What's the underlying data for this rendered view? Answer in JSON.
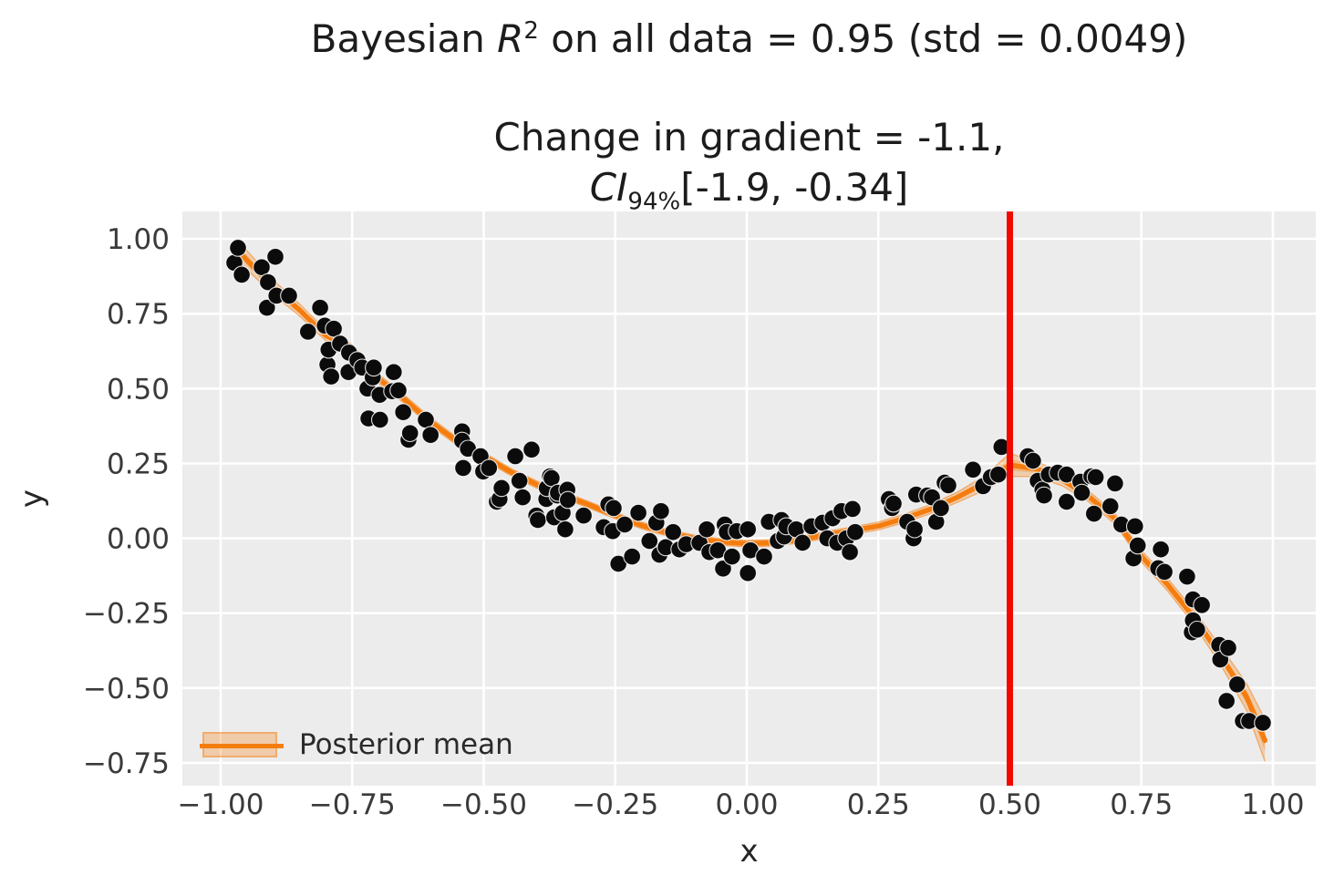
{
  "titles": {
    "suptitle": {
      "pre": "Bayesian ",
      "var": "R",
      "sup": "2",
      "post": " on all data = 0.95 (std = 0.0049)"
    },
    "axes_title": {
      "line1": "Change in gradient = -1.1,",
      "ci_var": "CI",
      "ci_sub": "94%",
      "ci_post": "[-1.9, -0.34]"
    }
  },
  "legend": {
    "label": "Posterior mean"
  },
  "colors": {
    "plot_bg": "#ececec",
    "grid": "#ffffff",
    "scatter": "#0b0b0b",
    "scatter_edge": "#ffffff",
    "mean_line": "#f57d0e",
    "band": "rgba(246,126,15,0.28)",
    "band_inner": "rgba(246,126,15,0.30)",
    "band_edge": "rgba(246,126,15,0.55)",
    "vline": "#f10800",
    "tick_text": "#3a3a3a",
    "axis_label": "#262626"
  },
  "chart_data": {
    "type": "scatter",
    "suptitle_plain": "Bayesian R2 on all data = 0.95 (std = 0.0049)",
    "title_plain": "Change in gradient = -1.1, CI94%[-1.9, -0.34]",
    "xlabel": "x",
    "ylabel": "y",
    "xlim": [
      -1.073,
      1.081
    ],
    "ylim": [
      -0.826,
      1.091
    ],
    "grid": true,
    "legend_position": "lower left",
    "vline_x": 0.5,
    "x_ticks": {
      "values": [
        -1.0,
        -0.75,
        -0.5,
        -0.25,
        0.0,
        0.25,
        0.5,
        0.75,
        1.0
      ],
      "labels": [
        "−1.00",
        "−0.75",
        "−0.50",
        "−0.25",
        "0.00",
        "0.25",
        "0.50",
        "0.75",
        "1.00"
      ]
    },
    "y_ticks": {
      "values": [
        1.0,
        0.75,
        0.5,
        0.25,
        0.0,
        -0.25,
        -0.5,
        -0.75
      ],
      "labels": [
        "1.00",
        "0.75",
        "0.50",
        "0.25",
        "0.00",
        "−0.25",
        "−0.50",
        "−0.75"
      ]
    },
    "posterior_mean": [
      [
        -0.97,
        0.965
      ],
      [
        -0.9,
        0.838
      ],
      [
        -0.85,
        0.762
      ],
      [
        -0.8,
        0.677
      ],
      [
        -0.75,
        0.631
      ],
      [
        -0.7,
        0.533
      ],
      [
        -0.65,
        0.463
      ],
      [
        -0.6,
        0.387
      ],
      [
        -0.55,
        0.323
      ],
      [
        -0.5,
        0.274
      ],
      [
        -0.45,
        0.223
      ],
      [
        -0.4,
        0.18
      ],
      [
        -0.35,
        0.145
      ],
      [
        -0.3,
        0.112
      ],
      [
        -0.25,
        0.076
      ],
      [
        -0.2,
        0.043
      ],
      [
        -0.15,
        0.018
      ],
      [
        -0.1,
        0.0
      ],
      [
        -0.05,
        -0.012
      ],
      [
        0.0,
        -0.018
      ],
      [
        0.05,
        -0.015
      ],
      [
        0.1,
        -0.005
      ],
      [
        0.15,
        0.011
      ],
      [
        0.2,
        0.026
      ],
      [
        0.25,
        0.041
      ],
      [
        0.3,
        0.067
      ],
      [
        0.35,
        0.098
      ],
      [
        0.4,
        0.137
      ],
      [
        0.45,
        0.183
      ],
      [
        0.5,
        0.245
      ],
      [
        0.55,
        0.232
      ],
      [
        0.6,
        0.195
      ],
      [
        0.65,
        0.14
      ],
      [
        0.7,
        0.065
      ],
      [
        0.75,
        -0.06
      ],
      [
        0.8,
        -0.155
      ],
      [
        0.85,
        -0.265
      ],
      [
        0.9,
        -0.39
      ],
      [
        0.95,
        -0.53
      ],
      [
        0.985,
        -0.675
      ]
    ],
    "ci_halfwidth": [
      0.035,
      0.024,
      0.02,
      0.018,
      0.016,
      0.015,
      0.014,
      0.014,
      0.013,
      0.013,
      0.012,
      0.012,
      0.011,
      0.011,
      0.011,
      0.011,
      0.011,
      0.011,
      0.011,
      0.011,
      0.011,
      0.011,
      0.011,
      0.012,
      0.013,
      0.014,
      0.015,
      0.017,
      0.024,
      0.038,
      0.026,
      0.02,
      0.018,
      0.018,
      0.019,
      0.021,
      0.024,
      0.03,
      0.045,
      0.07
    ],
    "points": [
      [
        -0.974,
        0.92
      ],
      [
        -0.967,
        0.97
      ],
      [
        -0.96,
        0.88
      ],
      [
        -0.922,
        0.905
      ],
      [
        -0.912,
        0.77
      ],
      [
        -0.91,
        0.855
      ],
      [
        -0.896,
        0.94
      ],
      [
        -0.894,
        0.81
      ],
      [
        -0.87,
        0.81
      ],
      [
        -0.834,
        0.69
      ],
      [
        -0.811,
        0.77
      ],
      [
        -0.802,
        0.71
      ],
      [
        -0.797,
        0.58
      ],
      [
        -0.795,
        0.63
      ],
      [
        -0.79,
        0.54
      ],
      [
        -0.785,
        0.7
      ],
      [
        -0.773,
        0.65
      ],
      [
        -0.757,
        0.555
      ],
      [
        -0.756,
        0.62
      ],
      [
        -0.74,
        0.595
      ],
      [
        -0.731,
        0.57
      ],
      [
        -0.721,
        0.5
      ],
      [
        -0.719,
        0.4
      ],
      [
        -0.711,
        0.537
      ],
      [
        -0.709,
        0.57
      ],
      [
        -0.698,
        0.479
      ],
      [
        -0.697,
        0.396
      ],
      [
        -0.674,
        0.491
      ],
      [
        -0.671,
        0.555
      ],
      [
        -0.662,
        0.494
      ],
      [
        -0.653,
        0.421
      ],
      [
        -0.643,
        0.329
      ],
      [
        -0.64,
        0.351
      ],
      [
        -0.61,
        0.396
      ],
      [
        -0.601,
        0.345
      ],
      [
        -0.541,
        0.357
      ],
      [
        -0.541,
        0.326
      ],
      [
        -0.539,
        0.235
      ],
      [
        -0.53,
        0.299
      ],
      [
        -0.506,
        0.274
      ],
      [
        -0.501,
        0.223
      ],
      [
        -0.49,
        0.235
      ],
      [
        -0.475,
        0.122
      ],
      [
        -0.47,
        0.131
      ],
      [
        -0.466,
        0.168
      ],
      [
        -0.44,
        0.274
      ],
      [
        -0.432,
        0.192
      ],
      [
        -0.426,
        0.137
      ],
      [
        -0.409,
        0.296
      ],
      [
        -0.4,
        0.076
      ],
      [
        -0.397,
        0.061
      ],
      [
        -0.381,
        0.131
      ],
      [
        -0.38,
        0.168
      ],
      [
        -0.374,
        0.207
      ],
      [
        -0.371,
        0.201
      ],
      [
        -0.366,
        0.07
      ],
      [
        -0.36,
        0.143
      ],
      [
        -0.359,
        0.152
      ],
      [
        -0.35,
        0.085
      ],
      [
        -0.345,
        0.03
      ],
      [
        -0.341,
        0.162
      ],
      [
        -0.34,
        0.128
      ],
      [
        -0.31,
        0.076
      ],
      [
        -0.272,
        0.037
      ],
      [
        -0.263,
        0.113
      ],
      [
        -0.255,
        0.024
      ],
      [
        -0.253,
        0.101
      ],
      [
        -0.244,
        -0.085
      ],
      [
        -0.232,
        0.046
      ],
      [
        -0.218,
        -0.061
      ],
      [
        -0.206,
        0.085
      ],
      [
        -0.185,
        -0.009
      ],
      [
        -0.172,
        0.052
      ],
      [
        -0.166,
        -0.055
      ],
      [
        -0.163,
        0.091
      ],
      [
        -0.154,
        -0.03
      ],
      [
        -0.14,
        0.021
      ],
      [
        -0.128,
        -0.037
      ],
      [
        -0.115,
        -0.02
      ],
      [
        -0.09,
        -0.015
      ],
      [
        -0.076,
        0.03
      ],
      [
        -0.071,
        -0.046
      ],
      [
        -0.055,
        -0.04
      ],
      [
        -0.045,
        -0.101
      ],
      [
        -0.042,
        0.046
      ],
      [
        -0.038,
        0.021
      ],
      [
        -0.028,
        -0.061
      ],
      [
        -0.019,
        0.024
      ],
      [
        0.002,
        0.03
      ],
      [
        0.002,
        -0.116
      ],
      [
        0.007,
        -0.04
      ],
      [
        0.033,
        -0.061
      ],
      [
        0.042,
        0.055
      ],
      [
        0.059,
        -0.009
      ],
      [
        0.066,
        0.061
      ],
      [
        0.071,
        0.006
      ],
      [
        0.075,
        0.04
      ],
      [
        0.094,
        0.03
      ],
      [
        0.106,
        -0.015
      ],
      [
        0.123,
        0.04
      ],
      [
        0.144,
        0.052
      ],
      [
        0.153,
        0.0
      ],
      [
        0.163,
        0.067
      ],
      [
        0.172,
        -0.015
      ],
      [
        0.18,
        0.091
      ],
      [
        0.189,
        0.0
      ],
      [
        0.196,
        -0.046
      ],
      [
        0.201,
        0.098
      ],
      [
        0.206,
        0.021
      ],
      [
        0.27,
        0.131
      ],
      [
        0.276,
        0.101
      ],
      [
        0.279,
        0.116
      ],
      [
        0.305,
        0.055
      ],
      [
        0.317,
        0.0
      ],
      [
        0.319,
        0.03
      ],
      [
        0.322,
        0.146
      ],
      [
        0.343,
        0.143
      ],
      [
        0.352,
        0.137
      ],
      [
        0.36,
        0.055
      ],
      [
        0.369,
        0.101
      ],
      [
        0.376,
        0.186
      ],
      [
        0.383,
        0.177
      ],
      [
        0.43,
        0.229
      ],
      [
        0.449,
        0.174
      ],
      [
        0.464,
        0.204
      ],
      [
        0.478,
        0.213
      ],
      [
        0.484,
        0.305
      ],
      [
        0.534,
        0.274
      ],
      [
        0.544,
        0.259
      ],
      [
        0.553,
        0.192
      ],
      [
        0.562,
        0.162
      ],
      [
        0.565,
        0.143
      ],
      [
        0.574,
        0.213
      ],
      [
        0.591,
        0.219
      ],
      [
        0.608,
        0.213
      ],
      [
        0.608,
        0.122
      ],
      [
        0.634,
        0.189
      ],
      [
        0.637,
        0.152
      ],
      [
        0.655,
        0.207
      ],
      [
        0.66,
        0.082
      ],
      [
        0.663,
        0.204
      ],
      [
        0.691,
        0.107
      ],
      [
        0.7,
        0.183
      ],
      [
        0.712,
        0.046
      ],
      [
        0.735,
        -0.067
      ],
      [
        0.738,
        0.04
      ],
      [
        0.743,
        -0.024
      ],
      [
        0.782,
        -0.1
      ],
      [
        0.787,
        -0.037
      ],
      [
        0.794,
        -0.112
      ],
      [
        0.837,
        -0.128
      ],
      [
        0.846,
        -0.314
      ],
      [
        0.848,
        -0.204
      ],
      [
        0.848,
        -0.274
      ],
      [
        0.856,
        -0.305
      ],
      [
        0.865,
        -0.223
      ],
      [
        0.898,
        -0.356
      ],
      [
        0.9,
        -0.405
      ],
      [
        0.912,
        -0.543
      ],
      [
        0.915,
        -0.366
      ],
      [
        0.932,
        -0.488
      ],
      [
        0.943,
        -0.61
      ],
      [
        0.955,
        -0.61
      ],
      [
        0.981,
        -0.616
      ]
    ]
  }
}
